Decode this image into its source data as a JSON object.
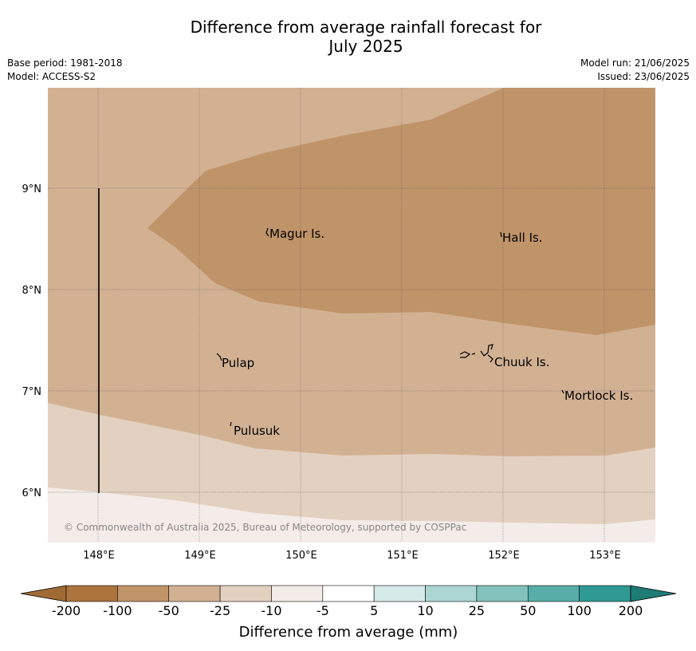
{
  "header": {
    "title_line1": "Difference from average rainfall forecast for",
    "title_line2": "July 2025",
    "base_period": "Base period: 1981-2018",
    "model": "Model: ACCESS-S2",
    "model_run": "Model run: 21/06/2025",
    "issued": "Issued: 23/06/2025"
  },
  "map": {
    "copyright": "© Commonwealth of Australia 2025, Bureau of Meteorology, supported by COSPPac",
    "lon_labels": [
      "148°E",
      "149°E",
      "150°E",
      "151°E",
      "152°E",
      "153°E"
    ],
    "lat_labels": [
      "9°N",
      "8°N",
      "7°N",
      "6°N"
    ],
    "places": {
      "magur": "Magur Is.",
      "hall": "Hall Is.",
      "pulap": "Pulap",
      "chuuk": "Chuuk Is.",
      "mortlock": "Mortlock Is.",
      "pulusuk": "Pulusuk"
    },
    "zone_colors": {
      "minus100_to_minus50": "#c09469",
      "minus50_to_minus25": "#d2b193",
      "minus25_to_minus10": "#e2d1c1",
      "minus10_to_minus5": "#f4ece8"
    }
  },
  "colorbar": {
    "title": "Difference from average (mm)",
    "ticks": [
      "-200",
      "-100",
      "-50",
      "-25",
      "-10",
      "-5",
      "5",
      "10",
      "25",
      "50",
      "100",
      "200"
    ],
    "low_extend_color": "#a06a35",
    "high_extend_color": "#1e7b76",
    "colors": [
      "#ad743d",
      "#c09469",
      "#d2b193",
      "#e2d1c1",
      "#f4ece8",
      "#ffffff",
      "#d6ebe9",
      "#acd6d3",
      "#82c2bd",
      "#58ada8",
      "#2f9993"
    ]
  }
}
